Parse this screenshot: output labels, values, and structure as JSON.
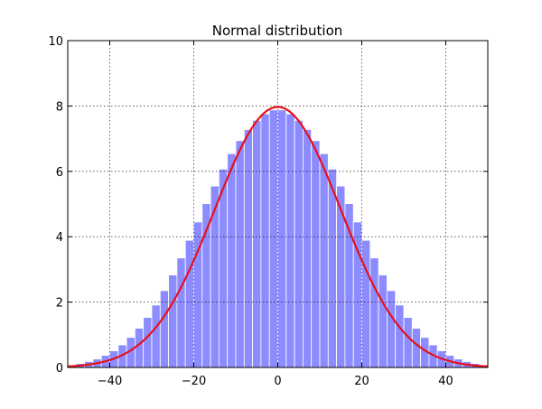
{
  "chart_data": {
    "type": "bar",
    "title": "Normal distribution",
    "xlabel": "",
    "ylabel": "",
    "xlim": [
      -50,
      50
    ],
    "ylim": [
      0,
      10
    ],
    "xticks": [
      -40,
      -20,
      0,
      20,
      40
    ],
    "yticks": [
      0,
      2,
      4,
      6,
      8,
      10
    ],
    "x_tick_labels": [
      "−40",
      "−20",
      "0",
      "20",
      "40"
    ],
    "y_tick_labels": [
      "0",
      "2",
      "4",
      "6",
      "8",
      "10"
    ],
    "grid": true,
    "legend": "none",
    "series": [
      {
        "kind": "bar",
        "x": [
          -49,
          -47,
          -45,
          -43,
          -41,
          -39,
          -37,
          -35,
          -33,
          -31,
          -29,
          -27,
          -25,
          -23,
          -21,
          -19,
          -17,
          -15,
          -13,
          -11,
          -9,
          -7,
          -5,
          -3,
          -1,
          1,
          3,
          5,
          7,
          9,
          11,
          13,
          15,
          17,
          19,
          21,
          23,
          25,
          27,
          29,
          31,
          33,
          35,
          37,
          39,
          41,
          43,
          45,
          47,
          49
        ],
        "values": [
          0.08,
          0.12,
          0.18,
          0.26,
          0.37,
          0.51,
          0.69,
          0.92,
          1.2,
          1.53,
          1.91,
          2.35,
          2.83,
          3.35,
          3.89,
          4.45,
          5.01,
          5.55,
          6.07,
          6.54,
          6.94,
          7.28,
          7.56,
          7.76,
          7.88,
          7.88,
          7.76,
          7.56,
          7.28,
          6.94,
          6.54,
          6.07,
          5.55,
          5.01,
          4.45,
          3.89,
          3.35,
          2.83,
          2.35,
          1.91,
          1.53,
          1.2,
          0.92,
          0.69,
          0.51,
          0.37,
          0.26,
          0.18,
          0.12,
          0.08
        ],
        "color": "#8080ff"
      },
      {
        "kind": "line",
        "mean": 0,
        "sigma": 15,
        "peak": 7.97,
        "color": "#e8101a"
      }
    ]
  }
}
